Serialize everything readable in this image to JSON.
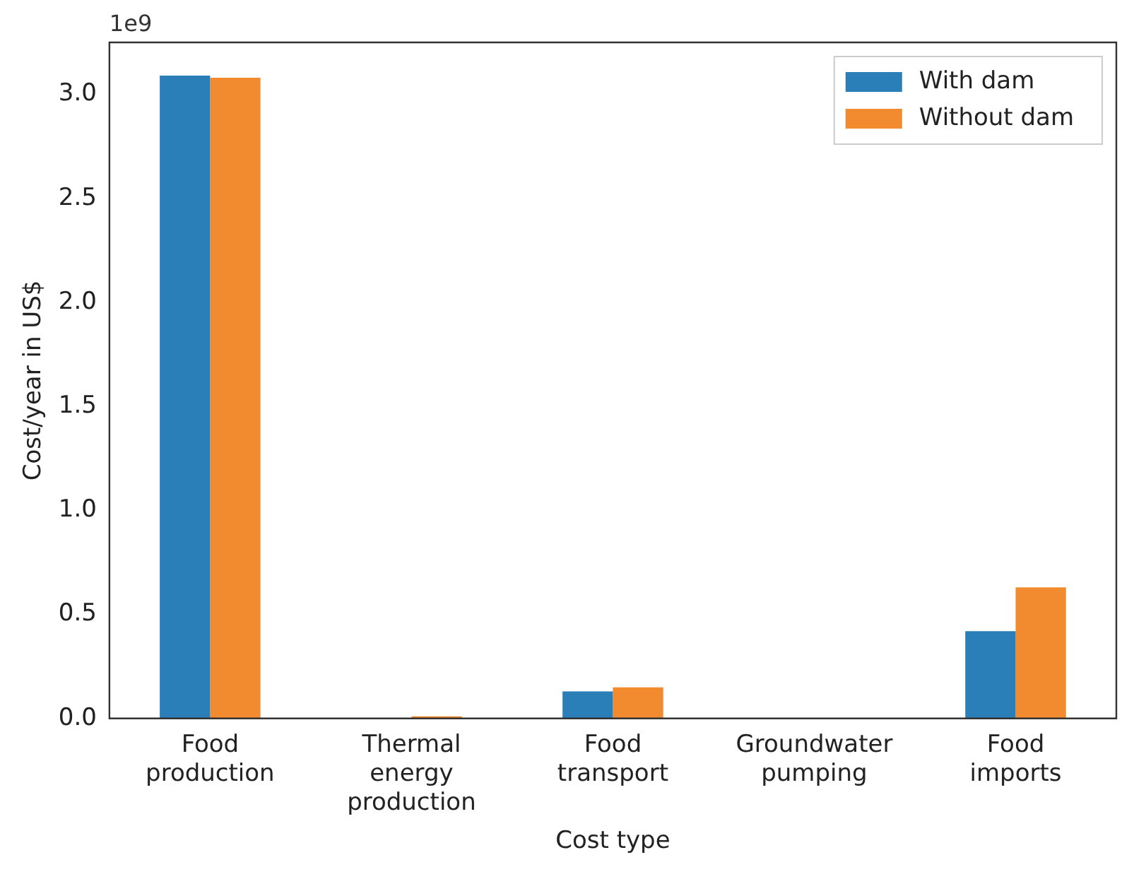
{
  "chart_data": {
    "type": "bar",
    "xlabel": "Cost type",
    "ylabel": "Cost/year in US$",
    "annotations": [
      "1e9"
    ],
    "categories": [
      "Food\nproduction",
      "Thermal\nenergy\nproduction",
      "Food\ntransport",
      "Groundwater\npumping",
      "Food\nimports"
    ],
    "series": [
      {
        "name": "With dam",
        "color": "#2a7fb8",
        "values": [
          3.09,
          0,
          0.13,
          0,
          0.42
        ]
      },
      {
        "name": "Without dam",
        "color": "#f28a30",
        "values": [
          3.08,
          0.01,
          0.15,
          0,
          0.63
        ]
      }
    ],
    "ylim": [
      0,
      3.25
    ],
    "yticks": [
      {
        "value": 0,
        "label": "0.0"
      },
      {
        "value": 0.5,
        "label": "0.5"
      },
      {
        "value": 1,
        "label": "1.0"
      },
      {
        "value": 1.5,
        "label": "1.5"
      },
      {
        "value": 2,
        "label": "2.0"
      },
      {
        "value": 2.5,
        "label": "2.5"
      },
      {
        "value": 3,
        "label": "3.0"
      }
    ],
    "grid": false,
    "legend": "top right"
  }
}
